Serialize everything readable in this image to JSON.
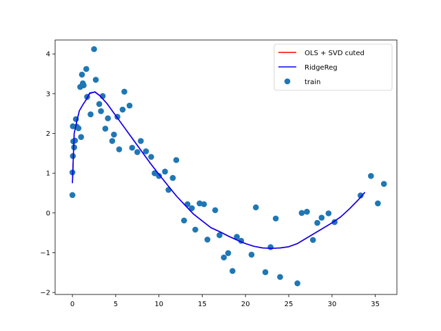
{
  "chart_data": {
    "type": "scatter",
    "title": "",
    "xlabel": "",
    "ylabel": "",
    "xlim": [
      -2,
      37.5
    ],
    "ylim": [
      -2.05,
      4.35
    ],
    "xticks": [
      0,
      5,
      10,
      15,
      20,
      25,
      30,
      35
    ],
    "yticks": [
      -2,
      -1,
      0,
      1,
      2,
      3,
      4
    ],
    "grid": false,
    "legend_position": "top-right",
    "series": [
      {
        "name": "OLS + SVD cuted",
        "kind": "line",
        "color": "#ff0000",
        "x": [
          0,
          0.2,
          0.5,
          0.8,
          1.2,
          1.6,
          2.0,
          2.6,
          3.2,
          4.0,
          5.0,
          6.0,
          7.0,
          8.0,
          9.0,
          10.0,
          11.0,
          12.0,
          13.0,
          14.0,
          15.0,
          16.0,
          17.0,
          18.0,
          19.0,
          20.0,
          21.0,
          22.0,
          23.0,
          24.0,
          25.0,
          26.0,
          27.0,
          28.0,
          29.0,
          30.0,
          31.0,
          32.0,
          33.0,
          33.8
        ],
        "y": [
          0.75,
          2.0,
          2.3,
          2.57,
          2.72,
          2.85,
          3.0,
          3.05,
          2.95,
          2.75,
          2.45,
          2.15,
          1.85,
          1.55,
          1.25,
          0.97,
          0.7,
          0.43,
          0.2,
          -0.03,
          -0.2,
          -0.37,
          -0.47,
          -0.58,
          -0.68,
          -0.77,
          -0.84,
          -0.88,
          -0.89,
          -0.88,
          -0.85,
          -0.77,
          -0.64,
          -0.51,
          -0.38,
          -0.25,
          -0.1,
          0.1,
          0.32,
          0.52
        ]
      },
      {
        "name": "RidgeReg",
        "kind": "line",
        "color": "#0000ff",
        "x": [
          0,
          0.2,
          0.5,
          0.8,
          1.2,
          1.6,
          2.0,
          2.6,
          3.2,
          4.0,
          5.0,
          6.0,
          7.0,
          8.0,
          9.0,
          10.0,
          11.0,
          12.0,
          13.0,
          14.0,
          15.0,
          16.0,
          17.0,
          18.0,
          19.0,
          20.0,
          21.0,
          22.0,
          23.0,
          24.0,
          25.0,
          26.0,
          27.0,
          28.0,
          29.0,
          30.0,
          31.0,
          32.0,
          33.0,
          33.8
        ],
        "y": [
          0.75,
          2.0,
          2.3,
          2.57,
          2.72,
          2.85,
          3.02,
          3.04,
          2.94,
          2.75,
          2.45,
          2.15,
          1.85,
          1.55,
          1.25,
          0.97,
          0.7,
          0.43,
          0.2,
          -0.03,
          -0.2,
          -0.37,
          -0.47,
          -0.58,
          -0.68,
          -0.77,
          -0.84,
          -0.88,
          -0.89,
          -0.88,
          -0.85,
          -0.77,
          -0.64,
          -0.51,
          -0.38,
          -0.25,
          -0.1,
          0.1,
          0.32,
          0.52
        ]
      },
      {
        "name": "train",
        "kind": "scatter",
        "color": "#1f77b4",
        "x": [
          0.0,
          0.0,
          0.05,
          0.05,
          0.1,
          0.2,
          0.3,
          0.4,
          0.5,
          0.7,
          0.9,
          1.0,
          1.1,
          1.2,
          1.3,
          1.6,
          1.7,
          2.1,
          2.5,
          2.7,
          3.1,
          3.3,
          3.5,
          3.8,
          4.1,
          4.6,
          4.8,
          5.2,
          5.4,
          5.8,
          6.0,
          6.6,
          6.9,
          7.5,
          7.9,
          8.5,
          9.1,
          9.5,
          10.0,
          10.7,
          11.1,
          11.6,
          12.0,
          12.9,
          13.3,
          13.8,
          14.2,
          14.7,
          15.2,
          15.6,
          16.5,
          17.0,
          17.5,
          18.0,
          18.5,
          19.0,
          19.5,
          20.7,
          21.2,
          22.3,
          22.9,
          23.5,
          24.0,
          26.0,
          26.5,
          27.1,
          27.8,
          28.3,
          28.8,
          29.6,
          30.3,
          33.3,
          34.5,
          35.3,
          36.0
        ],
        "y": [
          0.45,
          1.02,
          1.43,
          2.18,
          1.8,
          1.65,
          1.82,
          2.36,
          2.17,
          2.13,
          3.17,
          1.91,
          3.48,
          3.26,
          3.21,
          3.62,
          2.92,
          2.48,
          4.12,
          3.35,
          2.74,
          2.56,
          2.94,
          2.12,
          2.38,
          1.81,
          1.97,
          2.42,
          1.6,
          2.6,
          3.05,
          2.7,
          1.64,
          1.53,
          1.81,
          1.55,
          1.41,
          1.0,
          0.93,
          1.04,
          0.58,
          0.88,
          1.33,
          -0.19,
          0.22,
          0.12,
          -0.42,
          0.24,
          0.22,
          -0.67,
          0.07,
          -0.56,
          -1.12,
          -1.01,
          -1.46,
          -0.6,
          -0.7,
          -1.05,
          0.14,
          -1.49,
          -0.86,
          -0.14,
          -1.61,
          -1.77,
          0.0,
          0.03,
          -0.68,
          -0.25,
          -0.12,
          -0.01,
          -0.23,
          0.44,
          0.93,
          0.24,
          0.73
        ]
      }
    ]
  }
}
